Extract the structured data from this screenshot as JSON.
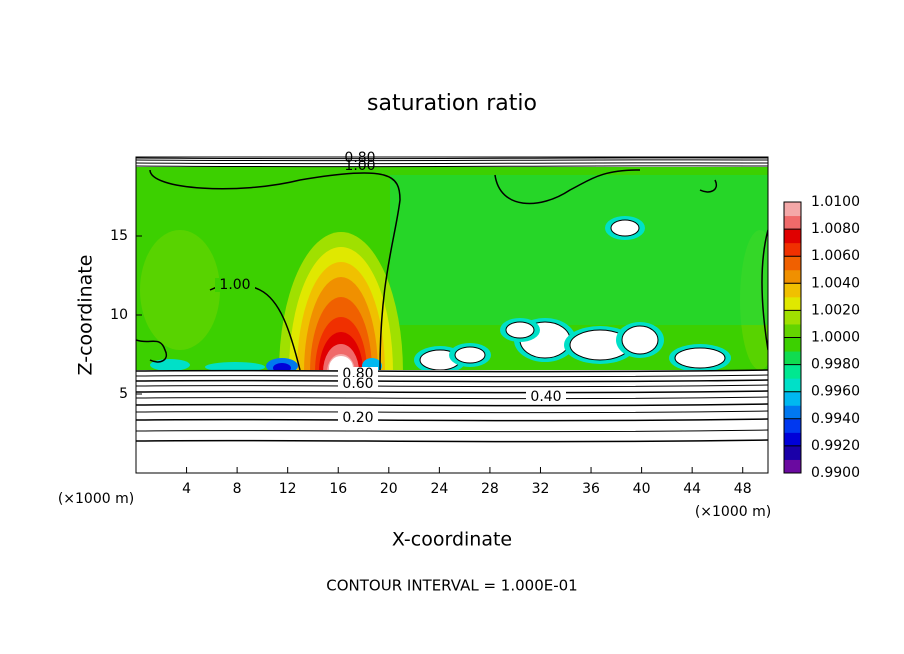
{
  "chart_data": {
    "type": "contour",
    "title": "saturation ratio",
    "x_label": "X-coordinate",
    "y_label": "Z-coordinate",
    "x_unit_label": "(×1000 m)",
    "y_unit_label": "(×1000 m)",
    "xlim": [
      0,
      50
    ],
    "ylim": [
      0,
      20
    ],
    "xticks": [
      4,
      8,
      12,
      16,
      20,
      24,
      28,
      32,
      36,
      40,
      44,
      48
    ],
    "yticks": [
      5,
      10,
      15
    ],
    "contour_labels": [
      "0.80",
      "1.00",
      "1.00",
      "0.80",
      "0.60",
      "0.40",
      "0.20"
    ],
    "footer": "CONTOUR INTERVAL = 1.000E-01",
    "colorbar": {
      "lim": [
        0.99,
        1.01
      ],
      "ticks": [
        {
          "value": 0.99,
          "label": "0.9900"
        },
        {
          "value": 0.992,
          "label": "0.9920"
        },
        {
          "value": 0.994,
          "label": "0.9940"
        },
        {
          "value": 0.996,
          "label": "0.9960"
        },
        {
          "value": 0.998,
          "label": "0.9980"
        },
        {
          "value": 1.0,
          "label": "1.0000"
        },
        {
          "value": 1.002,
          "label": "1.0020"
        },
        {
          "value": 1.004,
          "label": "1.0040"
        },
        {
          "value": 1.006,
          "label": "1.0060"
        },
        {
          "value": 1.008,
          "label": "1.0080"
        },
        {
          "value": 1.01,
          "label": "1.0100"
        }
      ],
      "colors": [
        "#6a0aa0",
        "#1a00a8",
        "#0000d8",
        "#0038f0",
        "#0078f0",
        "#00b8f0",
        "#00e0c8",
        "#00e890",
        "#10dc50",
        "#3cd000",
        "#64d400",
        "#a0e000",
        "#e0e800",
        "#f0c000",
        "#f09000",
        "#f06000",
        "#f03000",
        "#e00000",
        "#f06a6a",
        "#f4a8a8"
      ]
    }
  }
}
